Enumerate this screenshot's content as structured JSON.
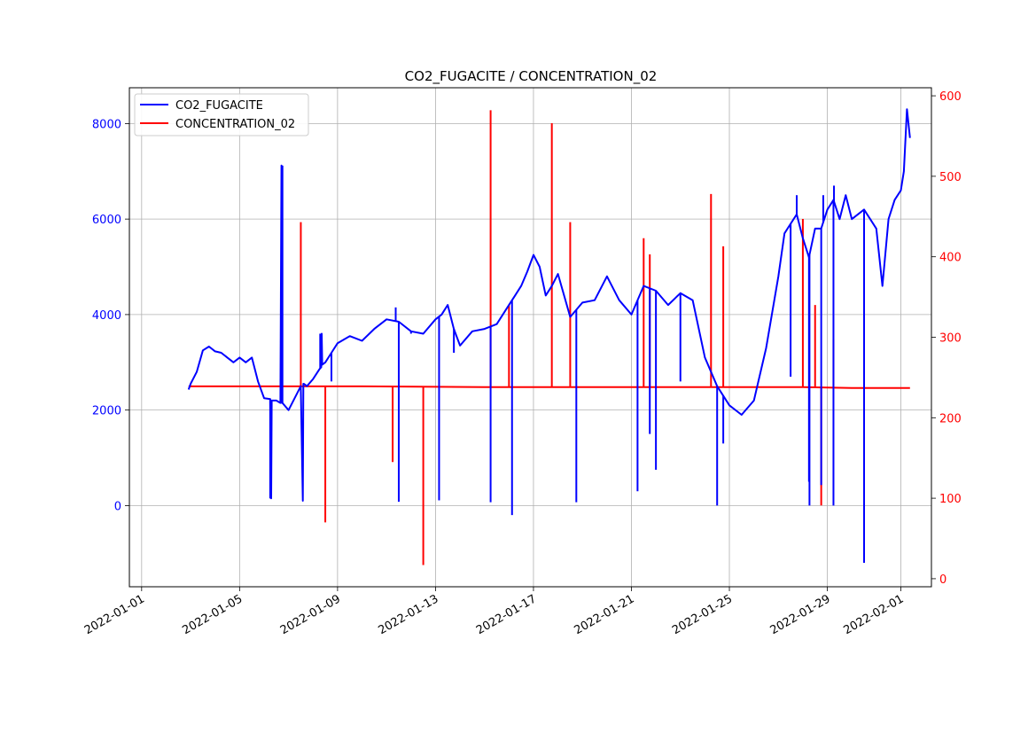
{
  "chart_data": {
    "type": "line",
    "title": "CO2_FUGACITE / CONCENTRATION_02",
    "xlabel": "",
    "ylabel": "",
    "x_axis": {
      "type": "date",
      "range": [
        "2021-12-31T12:00",
        "2022-02-02T06:00"
      ],
      "tick_labels": [
        "2022-01-01",
        "2022-01-05",
        "2022-01-09",
        "2022-01-13",
        "2022-01-17",
        "2022-01-21",
        "2022-01-25",
        "2022-01-29",
        "2022-02-01"
      ]
    },
    "y_axis_left": {
      "range": [
        -1700,
        8750
      ],
      "ticks": [
        0,
        2000,
        4000,
        6000,
        8000
      ],
      "tick_labels": [
        "0",
        "2000",
        "4000",
        "6000",
        "8000"
      ],
      "color": "#0000ff"
    },
    "y_axis_right": {
      "range": [
        -10,
        610
      ],
      "ticks": [
        0,
        100,
        200,
        300,
        400,
        500,
        600
      ],
      "tick_labels": [
        "0",
        "100",
        "200",
        "300",
        "400",
        "500",
        "600"
      ],
      "color": "#ff0000"
    },
    "grid": true,
    "legend_position": "upper-left",
    "series": [
      {
        "name": "CO2_FUGACITE",
        "axis": "left",
        "color": "#0000ff",
        "x": [
          "2022-01-02T22:00",
          "2022-01-03T00:00",
          "2022-01-03T06:00",
          "2022-01-03T12:00",
          "2022-01-03T18:00",
          "2022-01-04T00:00",
          "2022-01-04T06:00",
          "2022-01-04T12:00",
          "2022-01-04T18:00",
          "2022-01-05T00:00",
          "2022-01-05T06:00",
          "2022-01-05T12:00",
          "2022-01-05T18:00",
          "2022-01-06T00:00",
          "2022-01-06T06:00",
          "2022-01-06T07:00",
          "2022-01-06T07:30",
          "2022-01-06T08:00",
          "2022-01-06T12:00",
          "2022-01-06T16:00",
          "2022-01-06T17:00",
          "2022-01-06T17:30",
          "2022-01-06T18:00",
          "2022-01-07T00:00",
          "2022-01-07T06:00",
          "2022-01-07T12:00",
          "2022-01-07T14:00",
          "2022-01-07T14:30",
          "2022-01-07T15:00",
          "2022-01-07T18:00",
          "2022-01-08T00:00",
          "2022-01-08T06:00",
          "2022-01-08T08:00",
          "2022-01-08T08:30",
          "2022-01-08T09:00",
          "2022-01-08T12:00",
          "2022-01-08T18:00",
          "2022-01-09T00:00",
          "2022-01-09T12:00",
          "2022-01-10T00:00",
          "2022-01-10T12:00",
          "2022-01-11T00:00",
          "2022-01-11T12:00",
          "2022-01-12T00:00",
          "2022-01-12T12:00",
          "2022-01-13T00:00",
          "2022-01-13T06:00",
          "2022-01-13T12:00",
          "2022-01-13T18:00",
          "2022-01-14T00:00",
          "2022-01-14T12:00",
          "2022-01-15T00:00",
          "2022-01-15T12:00",
          "2022-01-16T00:00",
          "2022-01-16T06:00",
          "2022-01-16T12:00",
          "2022-01-16T18:00",
          "2022-01-17T00:00",
          "2022-01-17T06:00",
          "2022-01-17T12:00",
          "2022-01-17T18:00",
          "2022-01-18T00:00",
          "2022-01-18T12:00",
          "2022-01-19T00:00",
          "2022-01-19T12:00",
          "2022-01-20T00:00",
          "2022-01-20T12:00",
          "2022-01-21T00:00",
          "2022-01-21T12:00",
          "2022-01-22T00:00",
          "2022-01-22T12:00",
          "2022-01-23T00:00",
          "2022-01-23T12:00",
          "2022-01-24T00:00",
          "2022-01-24T12:00",
          "2022-01-25T00:00",
          "2022-01-25T12:00",
          "2022-01-26T00:00",
          "2022-01-26T12:00",
          "2022-01-27T00:00",
          "2022-01-27T06:00",
          "2022-01-27T12:00",
          "2022-01-27T18:00",
          "2022-01-28T00:00",
          "2022-01-28T06:00",
          "2022-01-28T12:00",
          "2022-01-28T18:00",
          "2022-01-29T00:00",
          "2022-01-29T06:00",
          "2022-01-29T12:00",
          "2022-01-29T18:00",
          "2022-01-30T00:00",
          "2022-01-30T12:00",
          "2022-01-31T00:00",
          "2022-01-31T06:00",
          "2022-01-31T12:00",
          "2022-01-31T18:00",
          "2022-02-01T00:00",
          "2022-02-01T03:00",
          "2022-02-01T06:00",
          "2022-02-01T09:00"
        ],
        "values": [
          2430,
          2550,
          2800,
          3250,
          3330,
          3230,
          3200,
          3100,
          3000,
          3100,
          3000,
          3100,
          2600,
          2250,
          2230,
          150,
          2200,
          2200,
          2200,
          2150,
          7120,
          2150,
          2150,
          2000,
          2250,
          2500,
          100,
          2550,
          2550,
          2500,
          2650,
          2850,
          2900,
          3600,
          2950,
          3000,
          3200,
          3400,
          3550,
          3450,
          3700,
          3900,
          3850,
          3650,
          3600,
          3900,
          4000,
          4200,
          3700,
          3350,
          3650,
          3700,
          3800,
          4200,
          4400,
          4600,
          4900,
          5250,
          5000,
          4400,
          4600,
          4850,
          3950,
          4250,
          4300,
          4800,
          4300,
          4000,
          4600,
          4500,
          4200,
          4450,
          4300,
          3100,
          2500,
          2100,
          1900,
          2200,
          3300,
          4800,
          5700,
          5900,
          6100,
          5600,
          5200,
          5800,
          5800,
          6200,
          6400,
          6000,
          6500,
          6000,
          6200,
          5800,
          4600,
          6000,
          6400,
          6600,
          7000,
          8300,
          7700
        ],
        "spikes": [
          {
            "x": "2022-01-06T06:00",
            "value": 150
          },
          {
            "x": "2022-01-06T18:00",
            "value": 7120
          },
          {
            "x": "2022-01-07T14:00",
            "value": 100
          },
          {
            "x": "2022-01-08T07:00",
            "value": 3600
          },
          {
            "x": "2022-01-08T18:00",
            "value": 2600
          },
          {
            "x": "2022-01-11T09:00",
            "value": 4150
          },
          {
            "x": "2022-01-11T12:00",
            "value": 80
          },
          {
            "x": "2022-01-12T00:00",
            "value": 3600
          },
          {
            "x": "2022-01-13T03:00",
            "value": 3950
          },
          {
            "x": "2022-01-13T03:30",
            "value": 110
          },
          {
            "x": "2022-01-13T18:00",
            "value": 3200
          },
          {
            "x": "2022-01-15T06:00",
            "value": 70
          },
          {
            "x": "2022-01-16T03:00",
            "value": -200
          },
          {
            "x": "2022-01-18T18:00",
            "value": 70
          },
          {
            "x": "2022-01-21T06:00",
            "value": 300
          },
          {
            "x": "2022-01-21T18:00",
            "value": 1500
          },
          {
            "x": "2022-01-22T00:00",
            "value": 750
          },
          {
            "x": "2022-01-23T00:00",
            "value": 2600
          },
          {
            "x": "2022-01-24T12:00",
            "value": 0
          },
          {
            "x": "2022-01-24T18:00",
            "value": 1300
          },
          {
            "x": "2022-01-27T12:00",
            "value": 2700
          },
          {
            "x": "2022-01-27T18:00",
            "value": 6500
          },
          {
            "x": "2022-01-28T06:00",
            "value": 500
          },
          {
            "x": "2022-01-28T06:30",
            "value": 0
          },
          {
            "x": "2022-01-28T18:00",
            "value": 430
          },
          {
            "x": "2022-01-28T20:00",
            "value": 6500
          },
          {
            "x": "2022-01-29T06:00",
            "value": 0
          },
          {
            "x": "2022-01-29T06:30",
            "value": 6700
          },
          {
            "x": "2022-01-30T12:00",
            "value": -1200
          }
        ]
      },
      {
        "name": "CONCENTRATION_02",
        "axis": "right",
        "color": "#ff0000",
        "x": [
          "2022-01-02T22:00",
          "2022-01-05T00:00",
          "2022-01-10T00:00",
          "2022-01-15T00:00",
          "2022-01-20T00:00",
          "2022-01-25T00:00",
          "2022-01-28T00:00",
          "2022-01-30T00:00",
          "2022-02-01T09:00"
        ],
        "values": [
          239,
          239,
          239,
          238,
          238,
          238,
          238,
          237,
          237
        ],
        "spikes": [
          {
            "x": "2022-01-07T12:00",
            "value": 443
          },
          {
            "x": "2022-01-08T12:00",
            "value": 70
          },
          {
            "x": "2022-01-11T06:00",
            "value": 145
          },
          {
            "x": "2022-01-12T12:00",
            "value": 17
          },
          {
            "x": "2022-01-15T06:00",
            "value": 582
          },
          {
            "x": "2022-01-16T00:00",
            "value": 340
          },
          {
            "x": "2022-01-17T18:00",
            "value": 566
          },
          {
            "x": "2022-01-18T12:00",
            "value": 443
          },
          {
            "x": "2022-01-21T12:00",
            "value": 423
          },
          {
            "x": "2022-01-21T18:00",
            "value": 403
          },
          {
            "x": "2022-01-24T06:00",
            "value": 478
          },
          {
            "x": "2022-01-24T18:00",
            "value": 413
          },
          {
            "x": "2022-01-28T00:00",
            "value": 447
          },
          {
            "x": "2022-01-28T12:00",
            "value": 340
          },
          {
            "x": "2022-01-28T18:00",
            "value": 91
          },
          {
            "x": "2022-01-29T06:00",
            "value": 297
          }
        ]
      }
    ]
  }
}
